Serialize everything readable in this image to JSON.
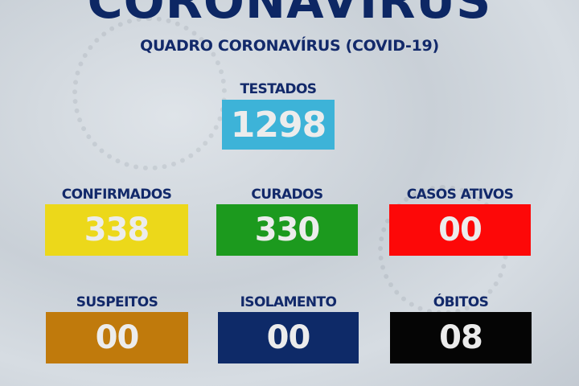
{
  "header": {
    "title": "CORONAVIRUS",
    "subtitle": "QUADRO CORONAVÍRUS (COVID-19)"
  },
  "stats": {
    "testados": {
      "label": "TESTADOS",
      "value": "1298",
      "color": "#3db3d8"
    },
    "confirmados": {
      "label": "CONFIRMADOS",
      "value": "338",
      "color": "#ecd81a"
    },
    "curados": {
      "label": "CURADOS",
      "value": "330",
      "color": "#1c9a1e"
    },
    "casos_ativos": {
      "label": "CASOS ATIVOS",
      "value": "00",
      "color": "#fd0808"
    },
    "suspeitos": {
      "label": "SUSPEITOS",
      "value": "00",
      "color": "#c07a0c"
    },
    "isolamento": {
      "label": "ISOLAMENTO",
      "value": "00",
      "color": "#0e2a68"
    },
    "obitos": {
      "label": "ÓBITOS",
      "value": "08",
      "color": "#050505"
    }
  }
}
